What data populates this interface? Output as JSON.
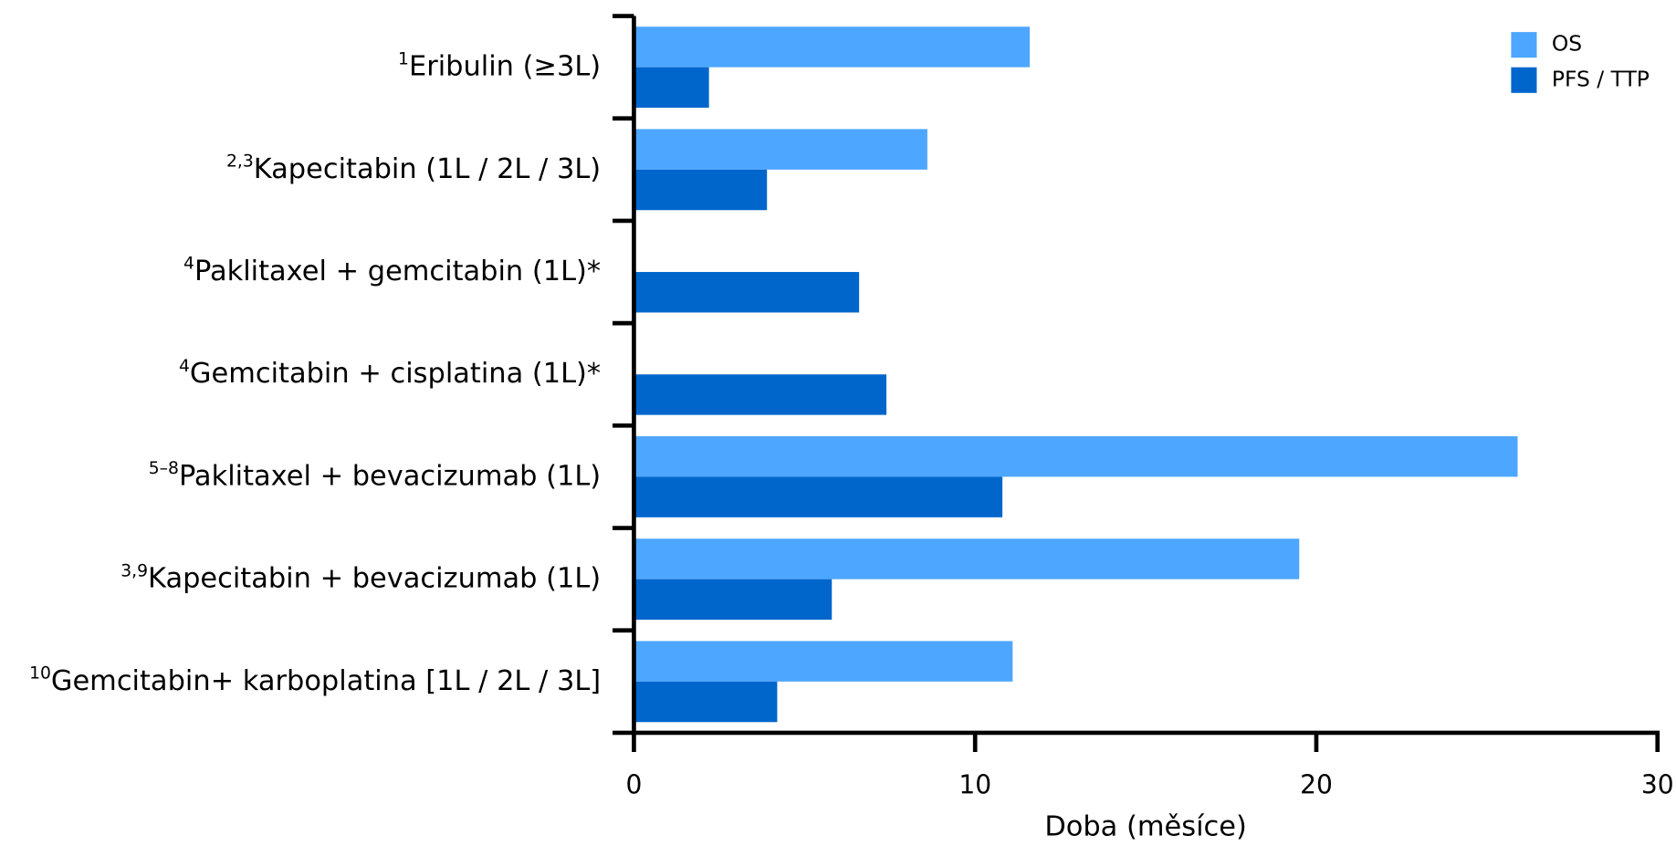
{
  "chart_data": {
    "type": "hbar",
    "x_label": "Doba (měsíce)",
    "categories": [
      "Eribulin (≥3L)",
      "Kapecitabin (1L / 2L / 3L)",
      "Paklitaxel + gemcitabin (1L)*",
      "Gemcitabin + cisplatina (1L)*",
      "Paklitaxel + bevacizumab (1L)",
      "Kapecitabin + bevacizumab (1L)",
      "Gemcitabin+ karboplatina [1L / 2L / 3L]"
    ],
    "category_refs": [
      "1",
      "2,3",
      "4",
      "4",
      "5–8",
      "3,9",
      "10"
    ],
    "series": [
      {
        "name": "OS",
        "color": "#4da6ff",
        "values": [
          11.6,
          8.6,
          null,
          null,
          25.9,
          19.5,
          11.1
        ]
      },
      {
        "name": "PFS / TTP",
        "color": "#0066cc",
        "values": [
          2.2,
          3.9,
          6.6,
          7.4,
          10.8,
          5.8,
          4.2
        ]
      }
    ],
    "xlim": [
      0,
      30
    ],
    "xticks": [
      0,
      10,
      20,
      30
    ],
    "legend": "upper right"
  }
}
